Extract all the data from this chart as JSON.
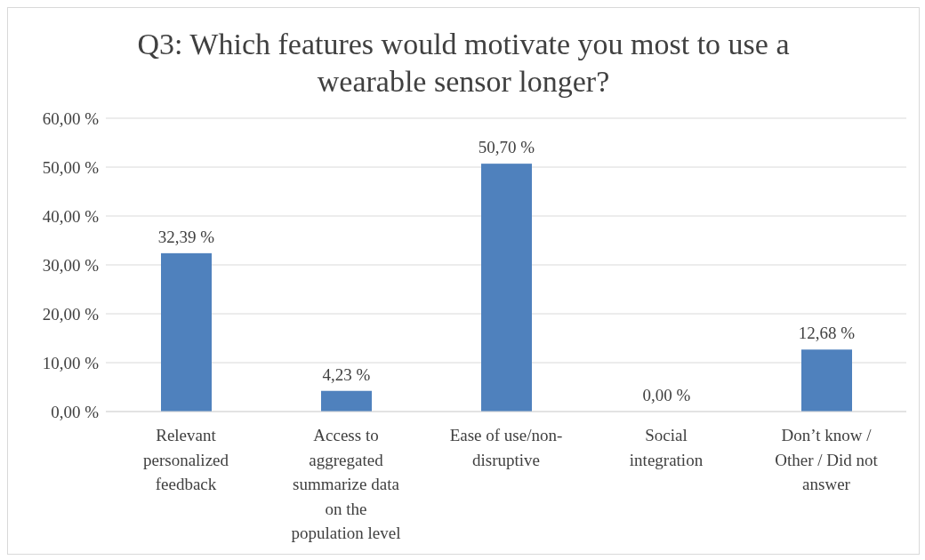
{
  "chart_data": {
    "type": "bar",
    "title": "Q3: Which features would motivate you most to use a wearable sensor longer?",
    "categories": [
      "Relevant personalized feedback",
      "Access to aggregated summarize data on the population level",
      "Ease of use/non-disruptive",
      "Social integration",
      "Don’t know / Other / Did not answer"
    ],
    "values": [
      32.39,
      4.23,
      50.7,
      0.0,
      12.68
    ],
    "value_labels": [
      "32,39 %",
      "4,23 %",
      "50,70 %",
      "0,00 %",
      "12,68 %"
    ],
    "color": "#4f81bd",
    "ylim": [
      0,
      60
    ],
    "yticks": [
      {
        "value": 0,
        "label": "0,00 %"
      },
      {
        "value": 10,
        "label": "10,00 %"
      },
      {
        "value": 20,
        "label": "20,00 %"
      },
      {
        "value": 30,
        "label": "30,00 %"
      },
      {
        "value": 40,
        "label": "40,00 %"
      },
      {
        "value": 50,
        "label": "50,00 %"
      },
      {
        "value": 60,
        "label": "60,00 %"
      }
    ],
    "grid": "y"
  }
}
